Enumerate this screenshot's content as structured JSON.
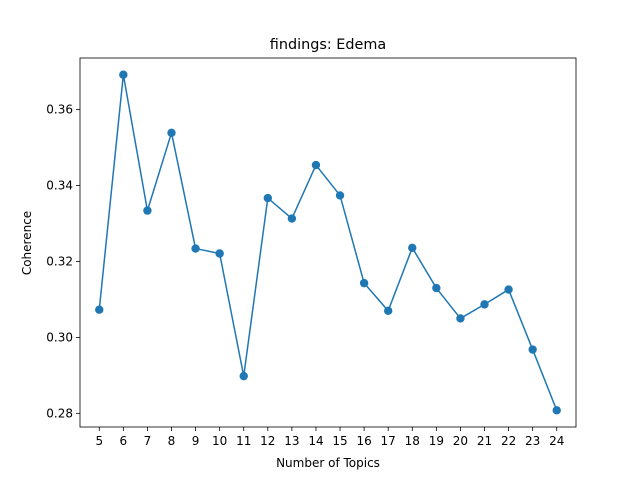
{
  "chart_data": {
    "type": "line",
    "title": "findings: Edema",
    "xlabel": "Number of Topics",
    "ylabel": "Coherence",
    "x": [
      5,
      6,
      7,
      8,
      9,
      10,
      11,
      12,
      13,
      14,
      15,
      16,
      17,
      18,
      19,
      20,
      21,
      22,
      23,
      24
    ],
    "series": [
      {
        "values": [
          0.3073,
          0.3692,
          0.3334,
          0.3539,
          0.3234,
          0.3221,
          0.2898,
          0.3367,
          0.3313,
          0.3454,
          0.3374,
          0.3143,
          0.307,
          0.3236,
          0.313,
          0.305,
          0.3087,
          0.3126,
          0.2968,
          0.2808
        ],
        "color": "#1f77b4",
        "marker": "circle"
      }
    ],
    "xlim": [
      4.2,
      24.8
    ],
    "ylim": [
      0.2764,
      0.3736
    ],
    "yticks": [
      0.28,
      0.3,
      0.32,
      0.34,
      0.36
    ],
    "ytick_labels": [
      "0.28",
      "0.30",
      "0.32",
      "0.34",
      "0.36"
    ],
    "grid": false,
    "legend": "none"
  }
}
